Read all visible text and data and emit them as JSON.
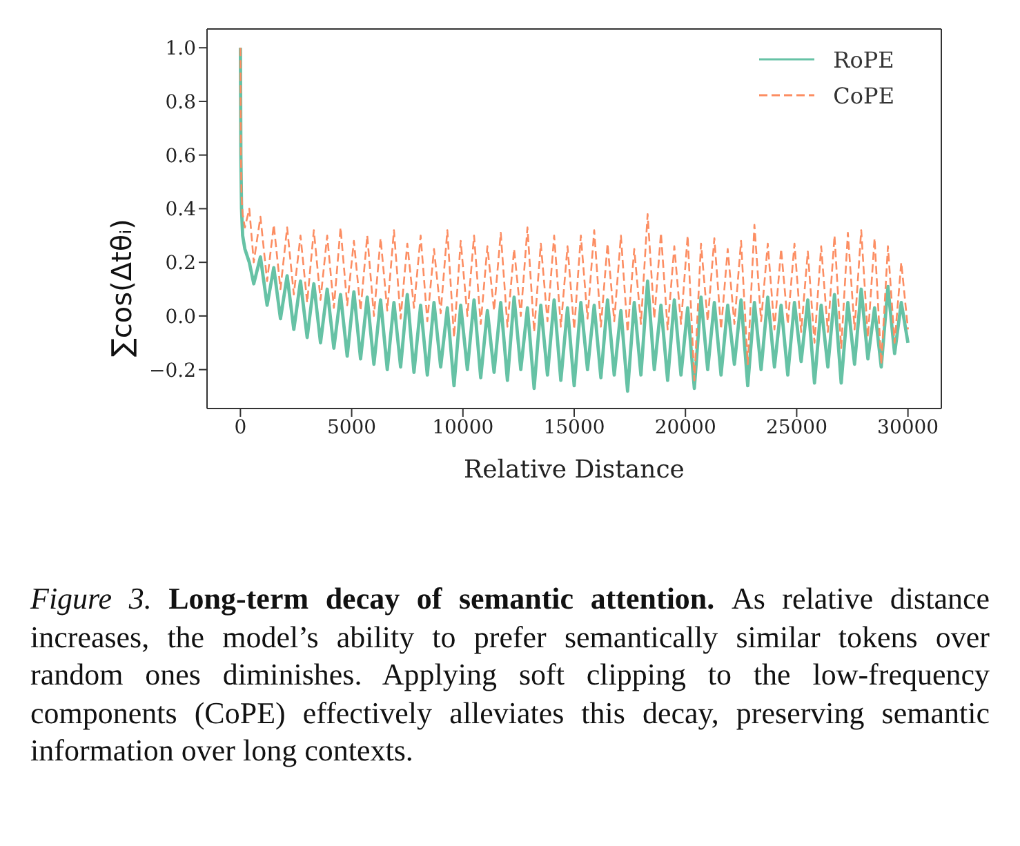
{
  "chart_data": {
    "type": "line",
    "xlabel": "Relative Distance",
    "ylabel": "∑cos(Δtθᵢ)",
    "annotations": [
      "Figure 3.",
      "Long-term decay of semantic attention.",
      "As relative distance increases, the model’s ability to prefer semantically similar tokens over random ones diminishes. Applying soft clipping to the low-frequency components (CoPE) effectively alleviates this decay, preserving semantic information over long contexts."
    ],
    "x": [
      0,
      20,
      50,
      100,
      200,
      400,
      600,
      900,
      1200,
      1500,
      1800,
      2100,
      2400,
      2700,
      3000,
      3300,
      3600,
      3900,
      4200,
      4500,
      4800,
      5100,
      5400,
      5700,
      6000,
      6300,
      6600,
      6900,
      7200,
      7500,
      7800,
      8100,
      8400,
      8700,
      9000,
      9300,
      9600,
      9900,
      10200,
      10500,
      10800,
      11100,
      11400,
      11700,
      12000,
      12300,
      12600,
      12900,
      13200,
      13500,
      13800,
      14100,
      14400,
      14700,
      15000,
      15300,
      15600,
      15900,
      16200,
      16500,
      16800,
      17100,
      17400,
      17700,
      18000,
      18300,
      18600,
      18900,
      19200,
      19500,
      19800,
      20100,
      20400,
      20700,
      21000,
      21300,
      21600,
      21900,
      22200,
      22500,
      22800,
      23100,
      23400,
      23700,
      24000,
      24300,
      24600,
      24900,
      25200,
      25500,
      25800,
      26100,
      26400,
      26700,
      27000,
      27300,
      27600,
      27900,
      28200,
      28500,
      28800,
      29100,
      29400,
      29700,
      30000
    ],
    "series": [
      {
        "name": "RoPE",
        "color": "#66c2a5",
        "line_style": "solid",
        "values": [
          1.0,
          0.6,
          0.4,
          0.3,
          0.25,
          0.2,
          0.12,
          0.22,
          0.04,
          0.18,
          -0.01,
          0.15,
          -0.05,
          0.13,
          -0.08,
          0.12,
          -0.1,
          0.1,
          -0.12,
          0.08,
          -0.15,
          0.09,
          -0.16,
          0.07,
          -0.18,
          0.06,
          -0.2,
          0.05,
          -0.19,
          0.08,
          -0.21,
          0.04,
          -0.22,
          0.05,
          -0.19,
          0.03,
          -0.26,
          0.04,
          -0.2,
          0.06,
          -0.23,
          0.02,
          -0.21,
          0.05,
          -0.24,
          0.07,
          -0.2,
          0.03,
          -0.27,
          0.04,
          -0.22,
          0.06,
          -0.24,
          0.03,
          -0.26,
          0.05,
          -0.2,
          0.04,
          -0.23,
          0.06,
          -0.22,
          0.02,
          -0.28,
          0.05,
          -0.22,
          0.13,
          -0.2,
          0.04,
          -0.24,
          0.06,
          -0.22,
          0.03,
          -0.27,
          0.07,
          -0.2,
          0.05,
          -0.22,
          0.04,
          -0.18,
          0.06,
          -0.26,
          0.05,
          -0.2,
          0.07,
          -0.19,
          0.04,
          -0.22,
          0.05,
          -0.17,
          0.06,
          -0.25,
          0.04,
          -0.19,
          0.08,
          -0.25,
          0.05,
          -0.18,
          0.1,
          -0.16,
          0.03,
          -0.19,
          0.11,
          -0.14,
          0.05,
          -0.1
        ]
      },
      {
        "name": "CoPE",
        "color": "#fc8d62",
        "line_style": "dashed",
        "values": [
          1.0,
          0.62,
          0.45,
          0.38,
          0.33,
          0.4,
          0.2,
          0.37,
          0.13,
          0.34,
          0.1,
          0.33,
          0.08,
          0.3,
          0.05,
          0.32,
          0.06,
          0.3,
          0.03,
          0.33,
          0.04,
          0.28,
          0.02,
          0.3,
          0.0,
          0.29,
          0.02,
          0.32,
          -0.01,
          0.27,
          0.03,
          0.3,
          -0.02,
          0.25,
          0.01,
          0.32,
          -0.08,
          0.28,
          0.0,
          0.3,
          -0.03,
          0.26,
          0.02,
          0.31,
          -0.04,
          0.25,
          0.0,
          0.33,
          -0.06,
          0.27,
          -0.02,
          0.3,
          -0.04,
          0.26,
          -0.05,
          0.3,
          -0.01,
          0.32,
          -0.04,
          0.27,
          -0.02,
          0.3,
          -0.06,
          0.25,
          -0.03,
          0.38,
          -0.01,
          0.31,
          -0.05,
          0.26,
          -0.03,
          0.3,
          -0.24,
          0.27,
          -0.02,
          0.29,
          -0.05,
          0.25,
          -0.03,
          0.28,
          -0.18,
          0.34,
          -0.02,
          0.27,
          -0.05,
          0.25,
          -0.03,
          0.27,
          -0.06,
          0.24,
          -0.1,
          0.26,
          -0.06,
          0.3,
          -0.12,
          0.31,
          -0.05,
          0.32,
          -0.08,
          0.29,
          -0.18,
          0.26,
          -0.1,
          0.2,
          -0.05
        ]
      }
    ],
    "xlim": [
      -1500,
      31500
    ],
    "xticks": [
      0,
      5000,
      10000,
      15000,
      20000,
      25000,
      30000
    ],
    "ylim": [
      -0.345,
      1.07
    ],
    "yticks": [
      {
        "value": -0.2,
        "label": "−0.2"
      },
      {
        "value": 0,
        "label": "0.0"
      },
      0.2,
      0.4,
      0.6,
      0.8,
      {
        "value": 1,
        "label": "1.0"
      }
    ],
    "legend": "top right",
    "marker": "none"
  }
}
